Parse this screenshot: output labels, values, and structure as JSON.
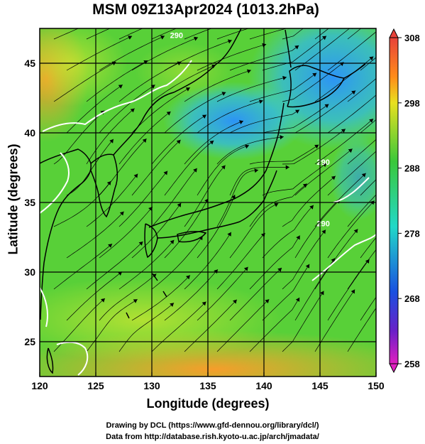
{
  "figure": {
    "title": "MSM 09Z13Apr2024 (1013.2hPa)",
    "xlabel": "Longitude (degrees)",
    "ylabel": "Latitude  (degrees)",
    "credit_line1": "Drawing by DCL (https://www.gfd-dennou.org/library/dcl/)",
    "credit_line2": "Data from http://database.rish.kyoto-u.ac.jp/arch/jmadata/"
  },
  "map": {
    "lon_range": [
      120,
      150
    ],
    "lat_range": [
      22.5,
      47.5
    ],
    "lon_ticks": [
      120,
      125,
      130,
      135,
      140,
      145,
      150
    ],
    "lat_ticks": [
      25,
      30,
      35,
      40,
      45
    ],
    "lon_tick_labels": [
      "120",
      "125",
      "130",
      "135",
      "140",
      "145",
      "150"
    ],
    "lat_tick_labels": [
      "25",
      "30",
      "35",
      "40",
      "45"
    ],
    "contour_labels": [
      {
        "text": "290",
        "lon": 132.2,
        "lat": 46.8
      },
      {
        "text": "290",
        "lon": 145.3,
        "lat": 37.7
      },
      {
        "text": "290",
        "lon": 145.3,
        "lat": 33.3
      }
    ]
  },
  "colorbar": {
    "min": 258,
    "max": 308,
    "tick_labels": [
      "308",
      "298",
      "288",
      "278",
      "268",
      "258"
    ],
    "tick_values": [
      308,
      298,
      288,
      278,
      268,
      258
    ]
  },
  "colors": {
    "warm": "#ff9a2a",
    "mid": "#5ad03a",
    "cool": "#2aa8ff",
    "contour": "#ffffff"
  }
}
